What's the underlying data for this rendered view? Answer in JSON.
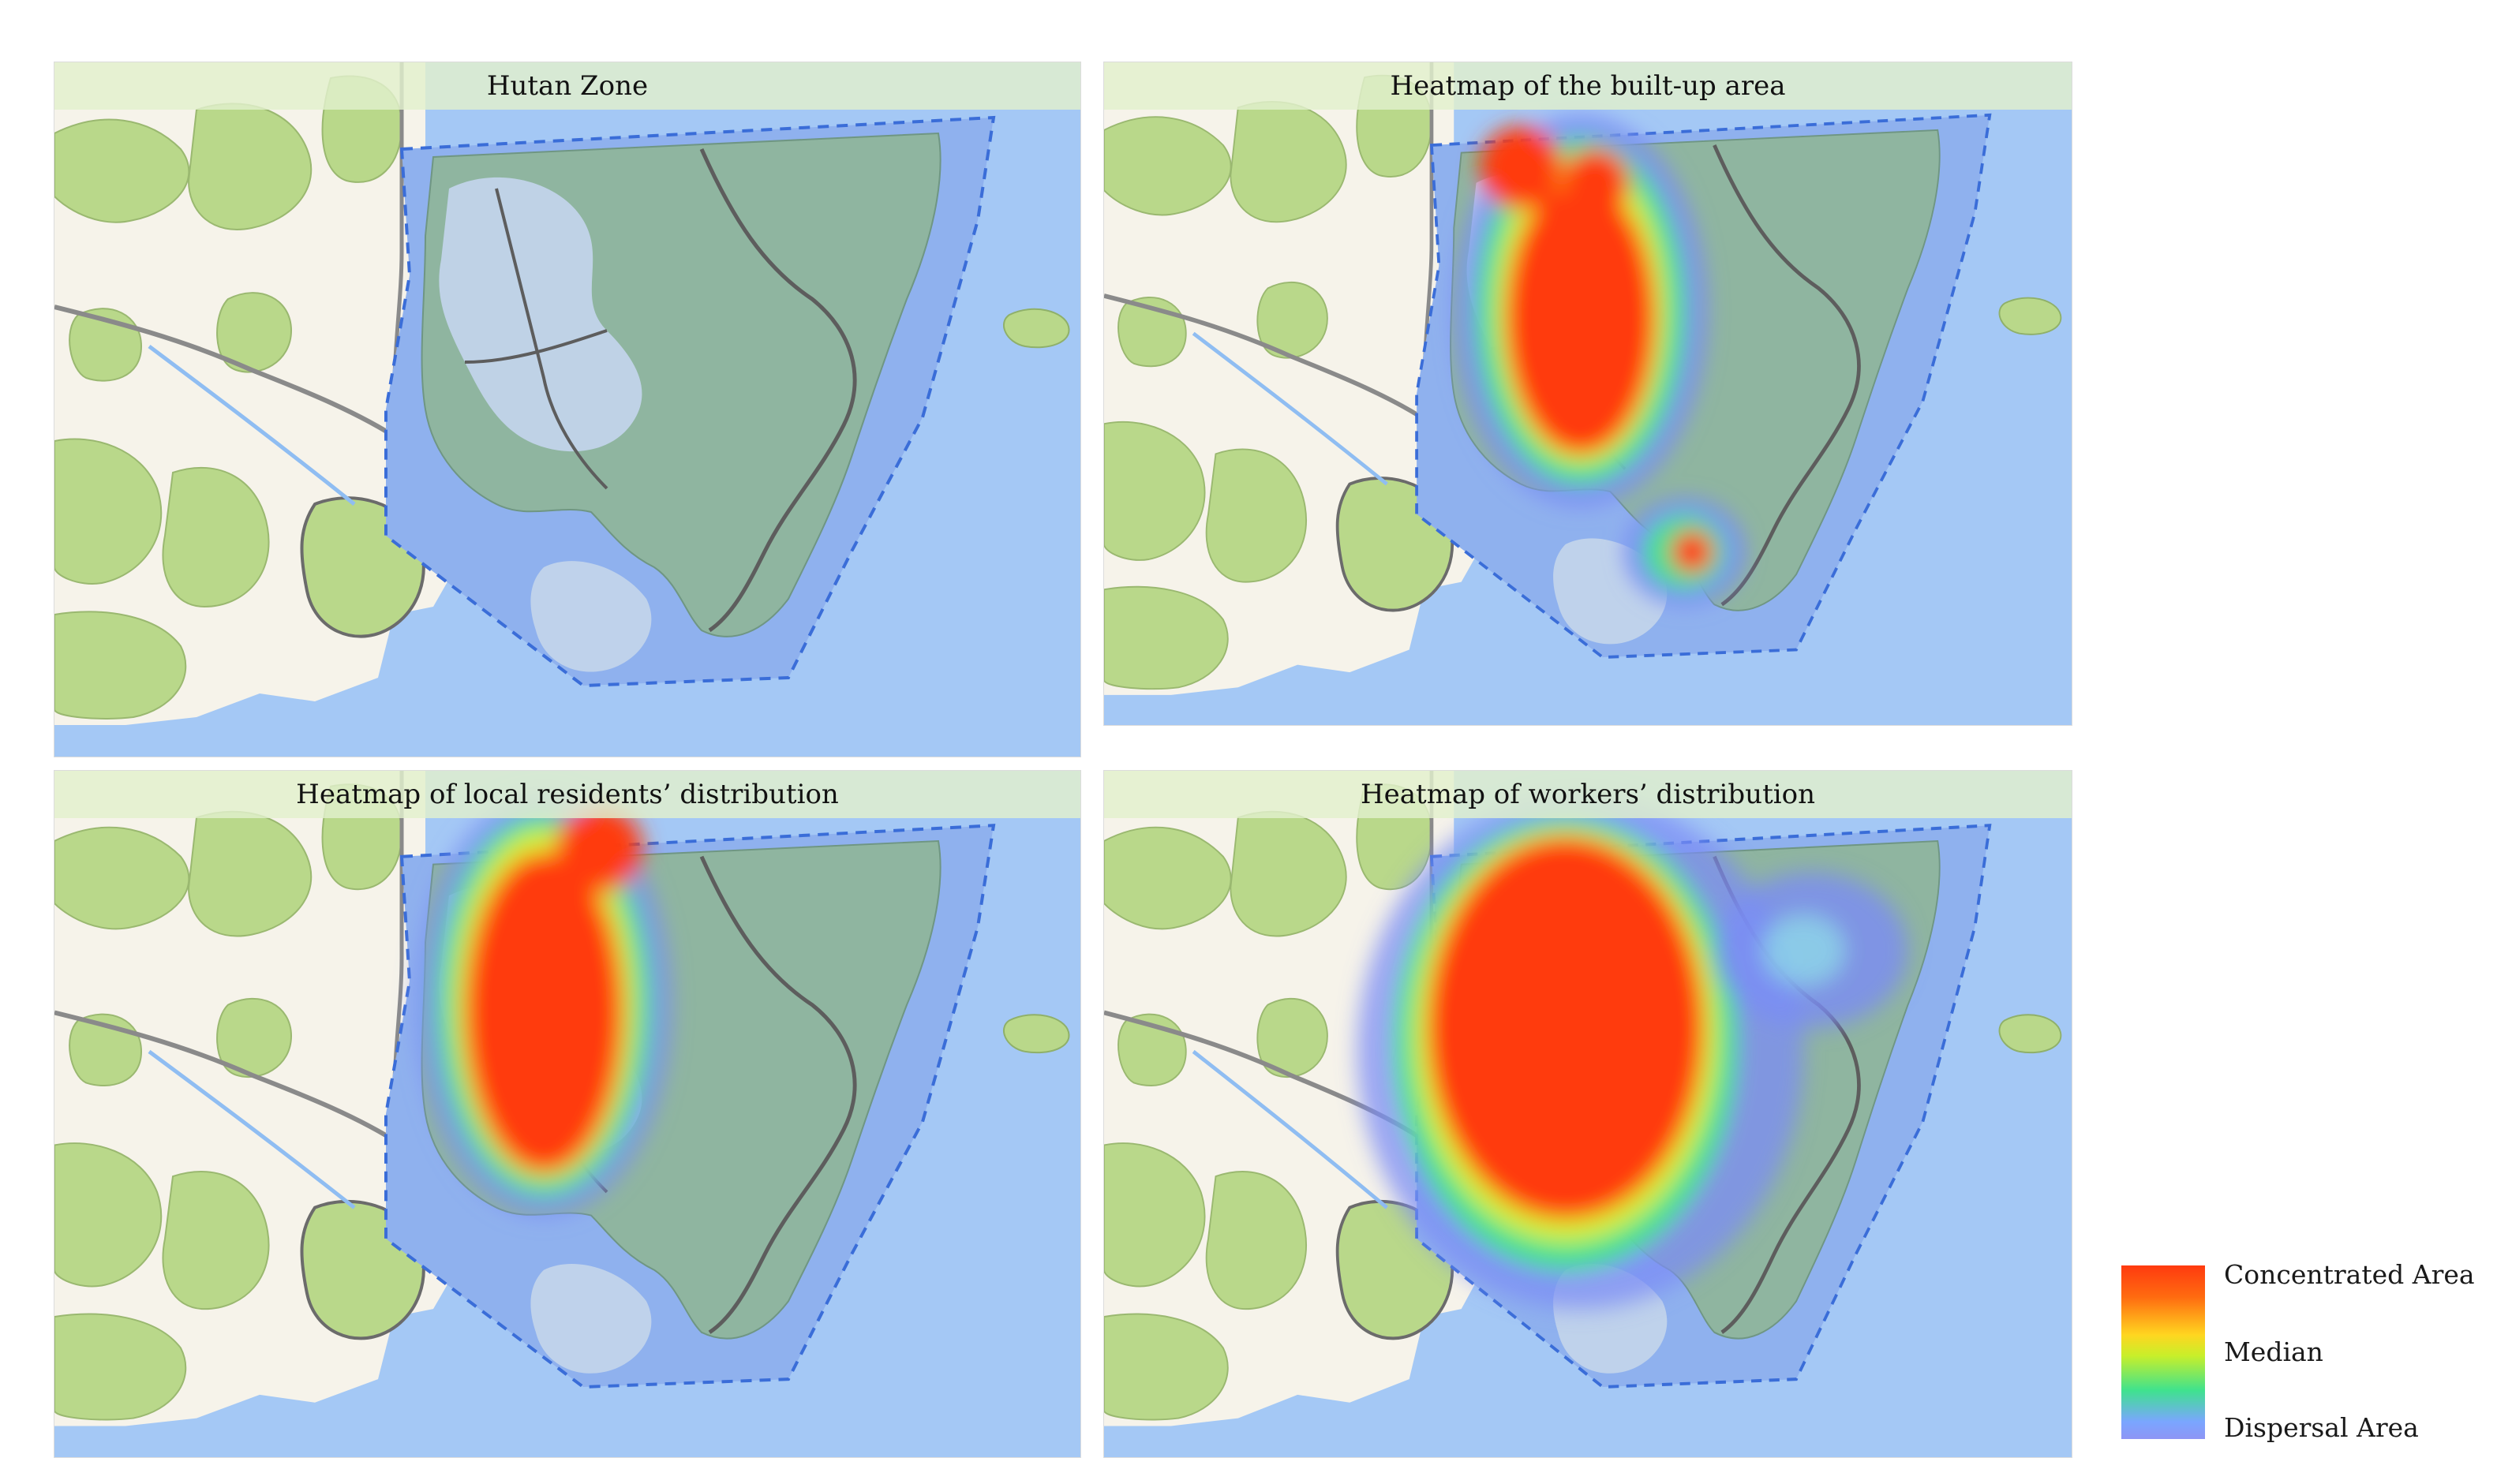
{
  "figure": {
    "panels": [
      {
        "id": "hutan-zone",
        "title": "Hutan Zone",
        "heat": "none"
      },
      {
        "id": "built-up",
        "title": "Heatmap of the built-up area",
        "heat": "built"
      },
      {
        "id": "residents",
        "title": "Heatmap of local residents’ distribution",
        "heat": "residents"
      },
      {
        "id": "workers",
        "title": "Heatmap of workers’ distribution",
        "heat": "workers"
      }
    ],
    "legend": {
      "high": "Concentrated Area",
      "mid": "Median",
      "low": "Dispersal Area"
    },
    "colors": {
      "sea": "#a4c8f5",
      "zone_fill": "#8fb1ee",
      "forest": "#8fb5a0",
      "greenland": "#b9d88a",
      "land": "#f6f3ea",
      "urban": "#c2d4ea",
      "heat_high": "#ff3a0f",
      "heat_mid": "#d8f030",
      "heat_low": "#7b8cf5"
    }
  }
}
